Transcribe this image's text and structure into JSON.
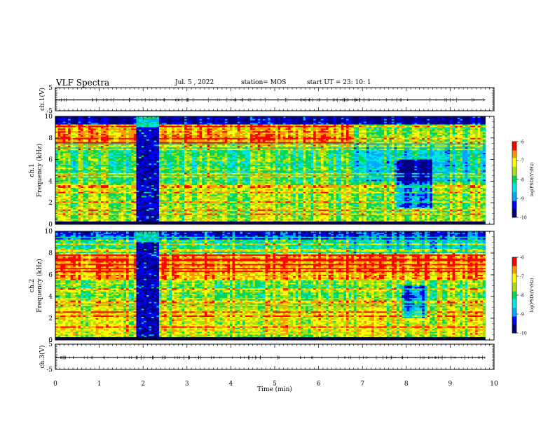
{
  "header": {
    "title": "VLF Spectra",
    "date": "Jul. 5 , 2022",
    "station": "station= MOS",
    "start": "start UT = 23: 10: 1"
  },
  "colors": {
    "background": "#ffffff",
    "axes": "#000000",
    "colormap": [
      "#00007f",
      "#0000ff",
      "#00a8ff",
      "#00e5e5",
      "#00d65a",
      "#a8e010",
      "#ffff00",
      "#ff9900",
      "#ff0000",
      "#ffffff"
    ]
  },
  "chart_data": [
    {
      "type": "line",
      "ylabel": "ch.1(V)",
      "ylim": [
        -5,
        5
      ],
      "yticks": [
        "5",
        "-5"
      ],
      "xlim": [
        0,
        10
      ],
      "series": [
        {
          "x": [
            0,
            9.8
          ],
          "values": [
            -0.3,
            -0.3
          ]
        }
      ]
    },
    {
      "type": "heatmap",
      "ylabel": "ch.1\nFrequency (kHz)",
      "ylim": [
        0,
        10
      ],
      "yticks": [
        "0",
        "2",
        "4",
        "6",
        "8",
        "10"
      ],
      "xlim": [
        0,
        10
      ],
      "colorbar": {
        "label": "log(PSD)(V²/Hz)",
        "ticks": [
          "-6",
          "-7",
          "-8",
          "-9",
          "-10"
        ],
        "range": [
          -10,
          -6
        ]
      },
      "data_end_min": 9.8,
      "gap_min": [
        1.85,
        2.38
      ],
      "quiet_patch_min": [
        7.8,
        8.6
      ],
      "quiet_band_khz": [
        1.5,
        6
      ]
    },
    {
      "type": "heatmap",
      "ylabel": "ch.2\nFrequency (kHz)",
      "ylim": [
        0,
        10
      ],
      "yticks": [
        "0",
        "2",
        "4",
        "6",
        "8",
        "10"
      ],
      "xlim": [
        0,
        10
      ],
      "colorbar": {
        "label": "log(PSD)(V²/Hz)",
        "ticks": [
          "-6",
          "-7",
          "-8",
          "-9",
          "-10"
        ],
        "range": [
          -10,
          -6
        ]
      },
      "data_end_min": 9.8,
      "gap_min": [
        1.85,
        2.38
      ],
      "quiet_patch_min": [
        7.9,
        8.5
      ],
      "quiet_band_khz": [
        2,
        5
      ]
    },
    {
      "type": "line",
      "ylabel": "ch.3(V)",
      "ylim": [
        -5,
        5
      ],
      "yticks": [
        "5",
        "-5"
      ],
      "xlim": [
        0,
        10
      ],
      "xticks": [
        "0",
        "1",
        "2",
        "3",
        "4",
        "5",
        "6",
        "7",
        "8",
        "9",
        "10"
      ],
      "xlabel": "Time (min)",
      "series": [
        {
          "x": [
            0,
            9.8
          ],
          "values": [
            -0.3,
            -0.3
          ]
        }
      ]
    }
  ]
}
